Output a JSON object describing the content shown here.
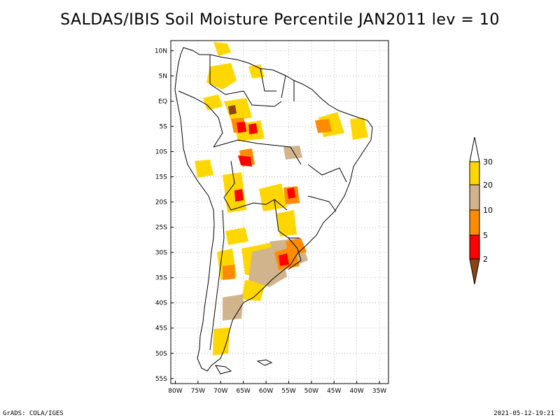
{
  "title": "SALDAS/IBIS Soil Moisture Percentile JAN2011 lev = 10",
  "footer": {
    "left": "GrADS: COLA/IGES",
    "right": "2021-05-12-19:21"
  },
  "map": {
    "lat_labels": [
      "10N",
      "5N",
      "EQ",
      "5S",
      "10S",
      "15S",
      "20S",
      "25S",
      "30S",
      "35S",
      "40S",
      "45S",
      "50S",
      "55S"
    ],
    "lat_values": [
      10,
      5,
      0,
      -5,
      -10,
      -15,
      -20,
      -25,
      -30,
      -35,
      -40,
      -45,
      -50,
      -55
    ],
    "lon_labels": [
      "80W",
      "75W",
      "70W",
      "65W",
      "60W",
      "55W",
      "50W",
      "45W",
      "40W",
      "35W"
    ],
    "lon_values": [
      -80,
      -75,
      -70,
      -65,
      -60,
      -55,
      -50,
      -45,
      -40,
      -35
    ],
    "lon_range": [
      -81,
      -33
    ],
    "lat_range": [
      -56,
      12
    ]
  },
  "legend": {
    "labels": [
      "2",
      "5",
      "10",
      "20",
      "30"
    ],
    "colors": {
      "lt2": "#8b4513",
      "2to5": "#ff0000",
      "5to10": "#ff8c00",
      "10to20": "#d2b48c",
      "20to30": "#ffd700",
      "gt30": "#ffffff"
    }
  }
}
